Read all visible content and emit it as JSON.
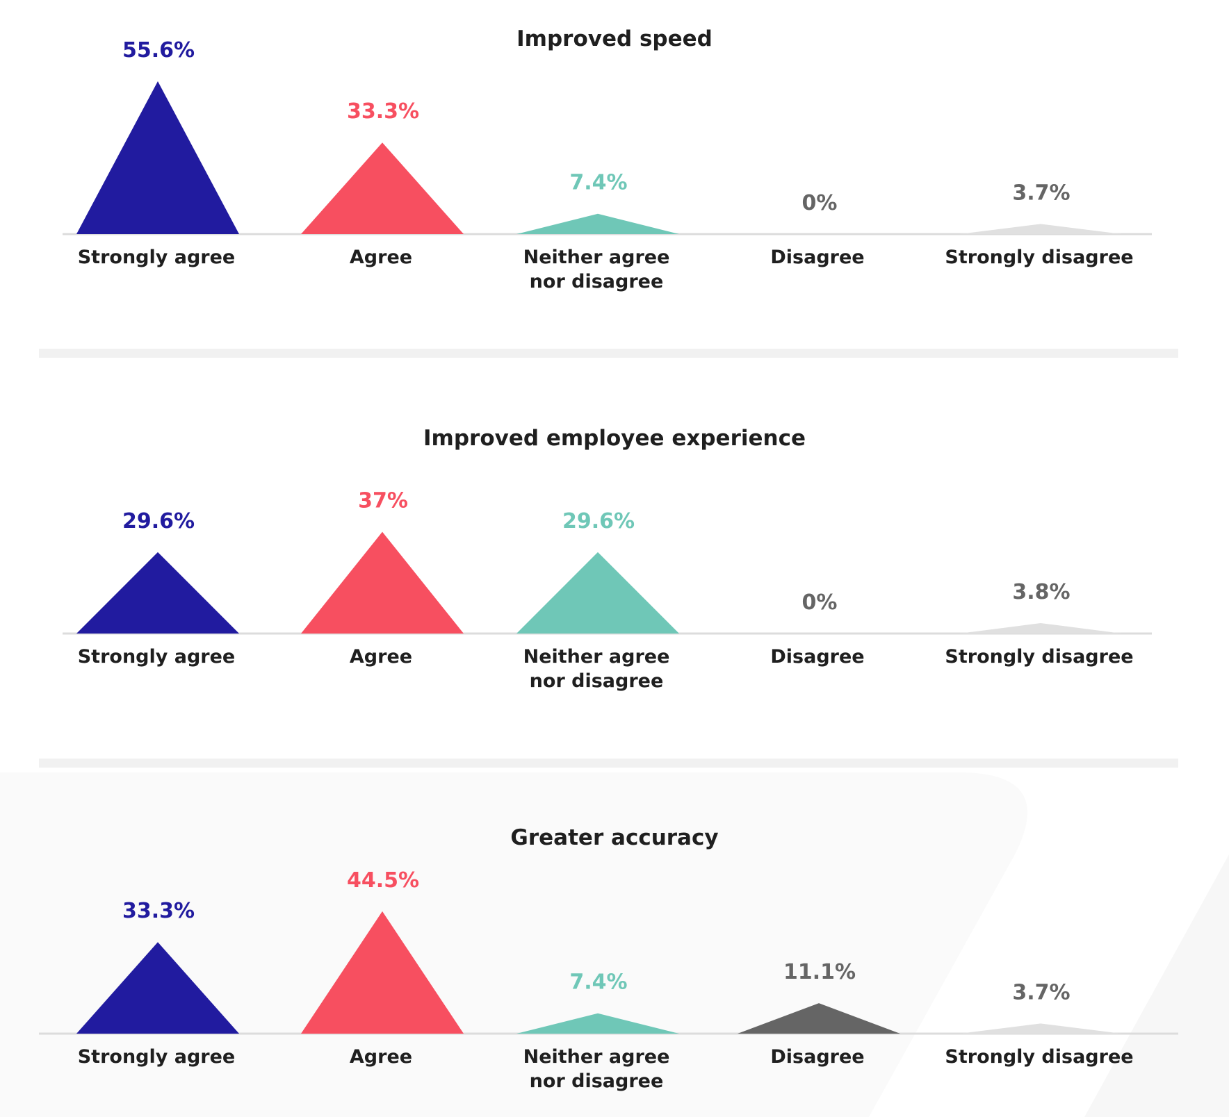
{
  "colors": {
    "strongly_agree": "#211b9f",
    "agree": "#f74f60",
    "neither": "#6fc7b7",
    "disagree": "#656565",
    "strongly_disagree": "#e0e0e0",
    "label_gray": "#656565",
    "baseline": "#dcdcdc",
    "text": "#1f1f1f"
  },
  "chart_data": [
    {
      "type": "bar",
      "title": "Improved speed",
      "categories": [
        "Strongly agree",
        "Agree",
        "Neither agree nor disagree",
        "Disagree",
        "Strongly disagree"
      ],
      "values": [
        55.6,
        33.3,
        7.4,
        0,
        3.7
      ],
      "value_labels": [
        "55.6%",
        "33.3%",
        "7.4%",
        "0%",
        "3.7%"
      ]
    },
    {
      "type": "bar",
      "title": "Improved employee experience",
      "categories": [
        "Strongly agree",
        "Agree",
        "Neither agree nor disagree",
        "Disagree",
        "Strongly disagree"
      ],
      "values": [
        29.6,
        37,
        29.6,
        0,
        3.8
      ],
      "value_labels": [
        "29.6%",
        "37%",
        "29.6%",
        "0%",
        "3.8%"
      ]
    },
    {
      "type": "bar",
      "title": "Greater accuracy",
      "categories": [
        "Strongly agree",
        "Agree",
        "Neither agree nor disagree",
        "Disagree",
        "Strongly disagree"
      ],
      "values": [
        33.3,
        44.5,
        7.4,
        11.1,
        3.7
      ],
      "value_labels": [
        "33.3%",
        "44.5%",
        "7.4%",
        "11.1%",
        "3.7%"
      ]
    }
  ]
}
